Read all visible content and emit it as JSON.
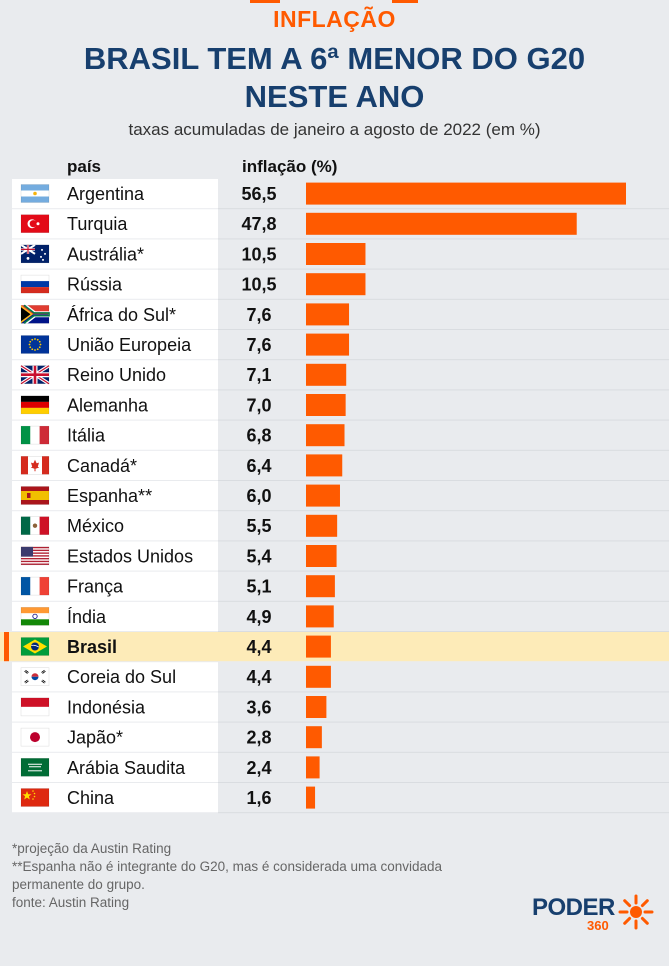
{
  "header": {
    "kicker": "INFLAÇÃO",
    "title_line1": "BRASIL TEM A 6ª MENOR DO G20",
    "title_line2": "NESTE ANO",
    "subtitle": "taxas acumuladas de janeiro a agosto de 2022 (em %)"
  },
  "columns": {
    "country": "país",
    "value": "inflação (%)"
  },
  "chart_data": {
    "type": "bar",
    "orientation": "horizontal",
    "title": "BRASIL TEM A 6ª MENOR DO G20 NESTE ANO",
    "subtitle": "taxas acumuladas de janeiro a agosto de 2022 (em %)",
    "xlabel": "inflação (%)",
    "ylabel": "país",
    "xlim": [
      0,
      56.5
    ],
    "grid": false,
    "highlight": "Brasil",
    "bar_color": "#ff5a00",
    "highlight_color": "#fdebb8",
    "categories": [
      "Argentina",
      "Turquia",
      "Austrália*",
      "Rússia",
      "África do Sul*",
      "União Europeia",
      "Reino Unido",
      "Alemanha",
      "Itália",
      "Canadá*",
      "Espanha**",
      "México",
      "Estados Unidos",
      "França",
      "Índia",
      "Brasil",
      "Coreia do Sul",
      "Indonésia",
      "Japão*",
      "Arábia Saudita",
      "China"
    ],
    "values": [
      56.5,
      47.8,
      10.5,
      10.5,
      7.6,
      7.6,
      7.1,
      7.0,
      6.8,
      6.4,
      6.0,
      5.5,
      5.4,
      5.1,
      4.9,
      4.4,
      4.4,
      3.6,
      2.8,
      2.4,
      1.6
    ],
    "value_labels": [
      "56,5",
      "47,8",
      "10,5",
      "10,5",
      "7,6",
      "7,6",
      "7,1",
      "7,0",
      "6,8",
      "6,4",
      "6,0",
      "5,5",
      "5,4",
      "5,1",
      "4,9",
      "4,4",
      "4,4",
      "3,6",
      "2,8",
      "2,4",
      "1,6"
    ],
    "flags": [
      "flag-argentina-icon",
      "flag-turkey-icon",
      "flag-australia-icon",
      "flag-russia-icon",
      "flag-south-africa-icon",
      "flag-european-union-icon",
      "flag-united-kingdom-icon",
      "flag-germany-icon",
      "flag-italy-icon",
      "flag-canada-icon",
      "flag-spain-icon",
      "flag-mexico-icon",
      "flag-united-states-icon",
      "flag-france-icon",
      "flag-india-icon",
      "flag-brazil-icon",
      "flag-south-korea-icon",
      "flag-indonesia-icon",
      "flag-japan-icon",
      "flag-saudi-arabia-icon",
      "flag-china-icon"
    ]
  },
  "footnotes": {
    "note1": "*projeção da Austin Rating",
    "note2_line1": "**Espanha não é integrante do G20, mas é considerada uma convidada",
    "note2_line2": "permanente do grupo.",
    "source": "fonte: Austin Rating"
  },
  "logo": {
    "name": "PODER",
    "number": "360"
  }
}
